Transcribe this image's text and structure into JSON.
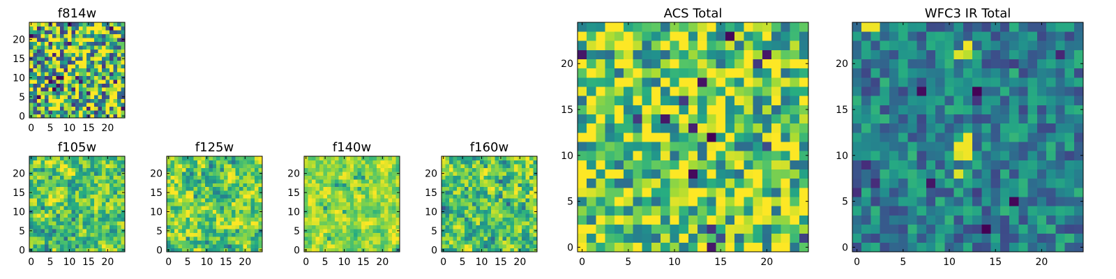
{
  "chart_data": [
    {
      "type": "heatmap",
      "id": "f814w",
      "title": "f814w",
      "grid": [
        25,
        25
      ],
      "xlim": [
        -0.5,
        24.5
      ],
      "ylim": [
        -0.5,
        24.5
      ],
      "xticks": [
        0,
        5,
        10,
        15,
        20
      ],
      "yticks": [
        0,
        5,
        10,
        15,
        20
      ],
      "colormap": "viridis",
      "value_range": [
        0.0,
        1.0
      ],
      "pattern": {
        "seed": 11,
        "mean": 0.72,
        "spread": 0.55,
        "blur": 0.0,
        "dark_fraction": 0.06
      },
      "bright_spots": []
    },
    {
      "type": "heatmap",
      "id": "f105w",
      "title": "f105w",
      "grid": [
        25,
        25
      ],
      "xlim": [
        -0.5,
        24.5
      ],
      "ylim": [
        -0.5,
        24.5
      ],
      "xticks": [
        0,
        5,
        10,
        15,
        20
      ],
      "yticks": [
        0,
        5,
        10,
        15,
        20
      ],
      "colormap": "viridis",
      "value_range": [
        0.0,
        1.0
      ],
      "pattern": {
        "seed": 23,
        "mean": 0.74,
        "spread": 0.45,
        "blur": 0.55,
        "dark_fraction": 0.03
      },
      "bright_spots": []
    },
    {
      "type": "heatmap",
      "id": "f125w",
      "title": "f125w",
      "grid": [
        25,
        25
      ],
      "xlim": [
        -0.5,
        24.5
      ],
      "ylim": [
        -0.5,
        24.5
      ],
      "xticks": [
        0,
        5,
        10,
        15,
        20
      ],
      "yticks": [
        0,
        5,
        10,
        15,
        20
      ],
      "colormap": "viridis",
      "value_range": [
        0.0,
        1.0
      ],
      "pattern": {
        "seed": 37,
        "mean": 0.76,
        "spread": 0.45,
        "blur": 0.55,
        "dark_fraction": 0.02
      },
      "bright_spots": []
    },
    {
      "type": "heatmap",
      "id": "f140w",
      "title": "f140w",
      "grid": [
        25,
        25
      ],
      "xlim": [
        -0.5,
        24.5
      ],
      "ylim": [
        -0.5,
        24.5
      ],
      "xticks": [
        0,
        5,
        10,
        15,
        20
      ],
      "yticks": [
        0,
        5,
        10,
        15,
        20
      ],
      "colormap": "viridis",
      "value_range": [
        0.0,
        1.0
      ],
      "pattern": {
        "seed": 41,
        "mean": 0.84,
        "spread": 0.32,
        "blur": 0.6,
        "dark_fraction": 0.015
      },
      "bright_spots": []
    },
    {
      "type": "heatmap",
      "id": "f160w",
      "title": "f160w",
      "grid": [
        25,
        25
      ],
      "xlim": [
        -0.5,
        24.5
      ],
      "ylim": [
        -0.5,
        24.5
      ],
      "xticks": [
        0,
        5,
        10,
        15,
        20
      ],
      "yticks": [
        0,
        5,
        10,
        15,
        20
      ],
      "colormap": "viridis",
      "value_range": [
        0.0,
        1.0
      ],
      "pattern": {
        "seed": 53,
        "mean": 0.74,
        "spread": 0.45,
        "blur": 0.55,
        "dark_fraction": 0.03
      },
      "bright_spots": []
    },
    {
      "type": "heatmap",
      "id": "acs-total",
      "title": "ACS Total",
      "grid": [
        25,
        25
      ],
      "xlim": [
        -0.5,
        24.5
      ],
      "ylim": [
        -0.5,
        24.5
      ],
      "xticks": [
        0,
        5,
        10,
        15,
        20
      ],
      "yticks": [
        0,
        5,
        10,
        15,
        20
      ],
      "colormap": "viridis",
      "value_range": [
        0.0,
        1.0
      ],
      "pattern": {
        "seed": 67,
        "mean": 0.76,
        "spread": 0.4,
        "blur": 0.0,
        "dark_fraction": 0.03
      },
      "bright_spots": []
    },
    {
      "type": "heatmap",
      "id": "wfc3-ir-total",
      "title": "WFC3 IR Total",
      "grid": [
        25,
        25
      ],
      "xlim": [
        -0.5,
        24.5
      ],
      "ylim": [
        -0.5,
        24.5
      ],
      "xticks": [
        0,
        5,
        10,
        15,
        20
      ],
      "yticks": [
        0,
        5,
        10,
        15,
        20
      ],
      "colormap": "viridis",
      "value_range": [
        0.0,
        1.0
      ],
      "pattern": {
        "seed": 79,
        "mean": 0.44,
        "spread": 0.22,
        "blur": 0.0,
        "dark_fraction": 0.05
      },
      "bright_spots": [
        [
          1,
          24,
          0.98
        ],
        [
          2,
          24,
          0.98
        ],
        [
          12,
          22,
          0.98
        ],
        [
          12,
          21,
          0.9
        ],
        [
          11,
          21,
          0.95
        ],
        [
          12,
          12,
          0.98
        ],
        [
          12,
          11,
          0.98
        ],
        [
          11,
          11,
          0.98
        ],
        [
          11,
          10,
          0.95
        ],
        [
          12,
          10,
          0.98
        ],
        [
          11,
          8,
          0.95
        ]
      ]
    }
  ]
}
